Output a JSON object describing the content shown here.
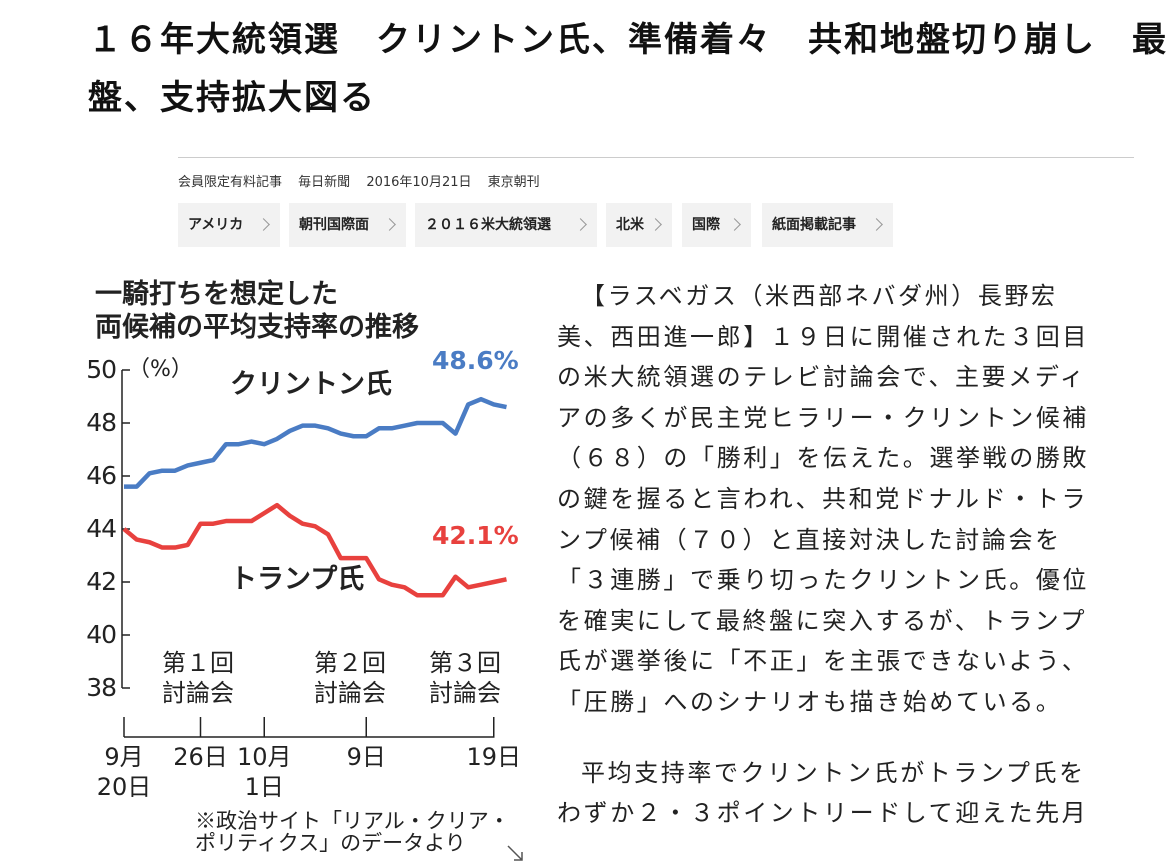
{
  "headline": {
    "lines": [
      "１６年大統領選　クリントン氏、準備着々　共和地盤切り崩し　最",
      "盤、支持拡大図る"
    ]
  },
  "meta": {
    "label": "会員限定有料記事",
    "source": "毎日新聞",
    "date": "2016年10月21日",
    "edition": "東京朝刊"
  },
  "tags": [
    "アメリカ",
    "朝刊国際面",
    "２０１６米大統領選",
    "北米",
    "国際",
    "紙面掲載記事"
  ],
  "chart_data": {
    "type": "line",
    "title": [
      "一騎打ちを想定した",
      "両候補の平均支持率の推移"
    ],
    "y_unit": "（%）",
    "categories": [
      "9月\n20日",
      null,
      null,
      null,
      null,
      null,
      "26日",
      null,
      null,
      null,
      null,
      "10月\n1日",
      null,
      null,
      null,
      null,
      null,
      null,
      null,
      "9日",
      null,
      null,
      null,
      null,
      null,
      null,
      null,
      null,
      null,
      "19日",
      null
    ],
    "series": [
      {
        "name": "クリントン氏",
        "color": "#4a7cc4",
        "values": [
          45.6,
          45.6,
          46.1,
          46.2,
          46.2,
          46.4,
          46.5,
          46.6,
          47.2,
          47.2,
          47.3,
          47.2,
          47.4,
          47.7,
          47.9,
          47.9,
          47.8,
          47.6,
          47.5,
          47.5,
          47.8,
          47.8,
          47.9,
          48.0,
          48.0,
          48.0,
          47.6,
          48.7,
          48.9,
          48.7,
          48.6
        ],
        "value_labels": [
          null,
          null,
          null,
          null,
          null,
          null,
          null,
          null,
          null,
          null,
          null,
          null,
          null,
          null,
          null,
          null,
          null,
          null,
          null,
          null,
          null,
          null,
          null,
          null,
          null,
          null,
          null,
          null,
          null,
          null,
          "48.6%"
        ]
      },
      {
        "name": "トランプ氏",
        "color": "#e8413e",
        "values": [
          44.0,
          43.6,
          43.5,
          43.3,
          43.3,
          43.4,
          44.2,
          44.2,
          44.3,
          44.3,
          44.3,
          44.6,
          44.9,
          44.5,
          44.2,
          44.1,
          43.8,
          42.9,
          42.9,
          42.9,
          42.1,
          41.9,
          41.8,
          41.5,
          41.5,
          41.5,
          42.2,
          41.8,
          41.9,
          42.0,
          42.1
        ],
        "value_labels": [
          null,
          null,
          null,
          null,
          null,
          null,
          null,
          null,
          null,
          null,
          null,
          null,
          null,
          null,
          null,
          null,
          null,
          null,
          null,
          null,
          null,
          null,
          null,
          null,
          null,
          null,
          null,
          null,
          null,
          null,
          "42.1%"
        ]
      }
    ],
    "events": [
      "第１回\n討論会",
      "第２回\n討論会",
      "第３回\n討論会"
    ],
    "ylim": [
      38,
      50
    ],
    "yticks": [
      38,
      40,
      42,
      44,
      46,
      48,
      50
    ],
    "note": "※政治サイト「リアル・クリア・\nポリティクス」のデータより"
  },
  "body": {
    "paragraphs": [
      "【ラスベガス（米西部ネバダ州）長野宏美、西田進一郎】１９日に開催された３回目の米大統領選のテレビ討論会で、主要メディアの多くが民主党ヒラリー・クリントン候補（６８）の「勝利」を伝えた。選挙戦の勝敗の鍵を握ると言われ、共和党ドナルド・トランプ候補（７０）と直接対決した討論会を「３連勝」で乗り切ったクリントン氏。優位を確実にして最終盤に突入するが、トランプ氏が選挙後に「不正」を主張できないよう、「圧勝」へのシナリオも描き始めている。",
      "平均支持率でクリントン氏がトランプ氏をわずか２・３ポイントリードして迎えた先月"
    ]
  }
}
